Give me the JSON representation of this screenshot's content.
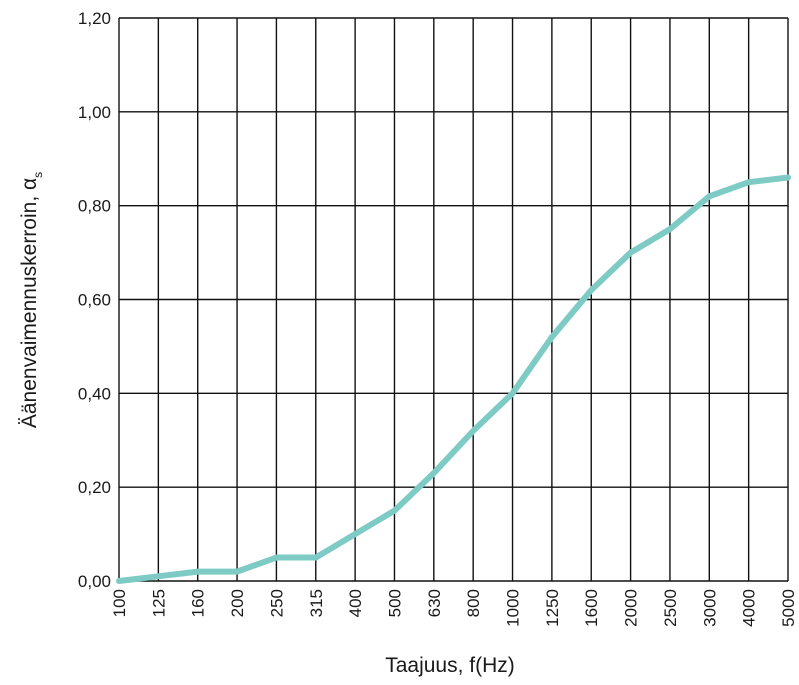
{
  "chart_data": {
    "type": "line",
    "title": "",
    "xlabel": "Taajuus, f(Hz)",
    "ylabel": "Äänenvaimennuskerroin, α",
    "ylabel_subscript": "s",
    "categories": [
      "100",
      "125",
      "160",
      "200",
      "250",
      "315",
      "400",
      "500",
      "630",
      "800",
      "1000",
      "1250",
      "1600",
      "2000",
      "2500",
      "3000",
      "4000",
      "5000"
    ],
    "y_ticks": [
      "0,00",
      "0,20",
      "0,40",
      "0,60",
      "0,80",
      "1,00",
      "1,20"
    ],
    "ylim": [
      0,
      1.2
    ],
    "grid": true,
    "series": [
      {
        "values": [
          0.0,
          0.01,
          0.02,
          0.02,
          0.05,
          0.05,
          0.1,
          0.15,
          0.23,
          0.32,
          0.4,
          0.52,
          0.62,
          0.7,
          0.75,
          0.82,
          0.85,
          0.86
        ],
        "color": "#7ecbc5"
      }
    ]
  }
}
